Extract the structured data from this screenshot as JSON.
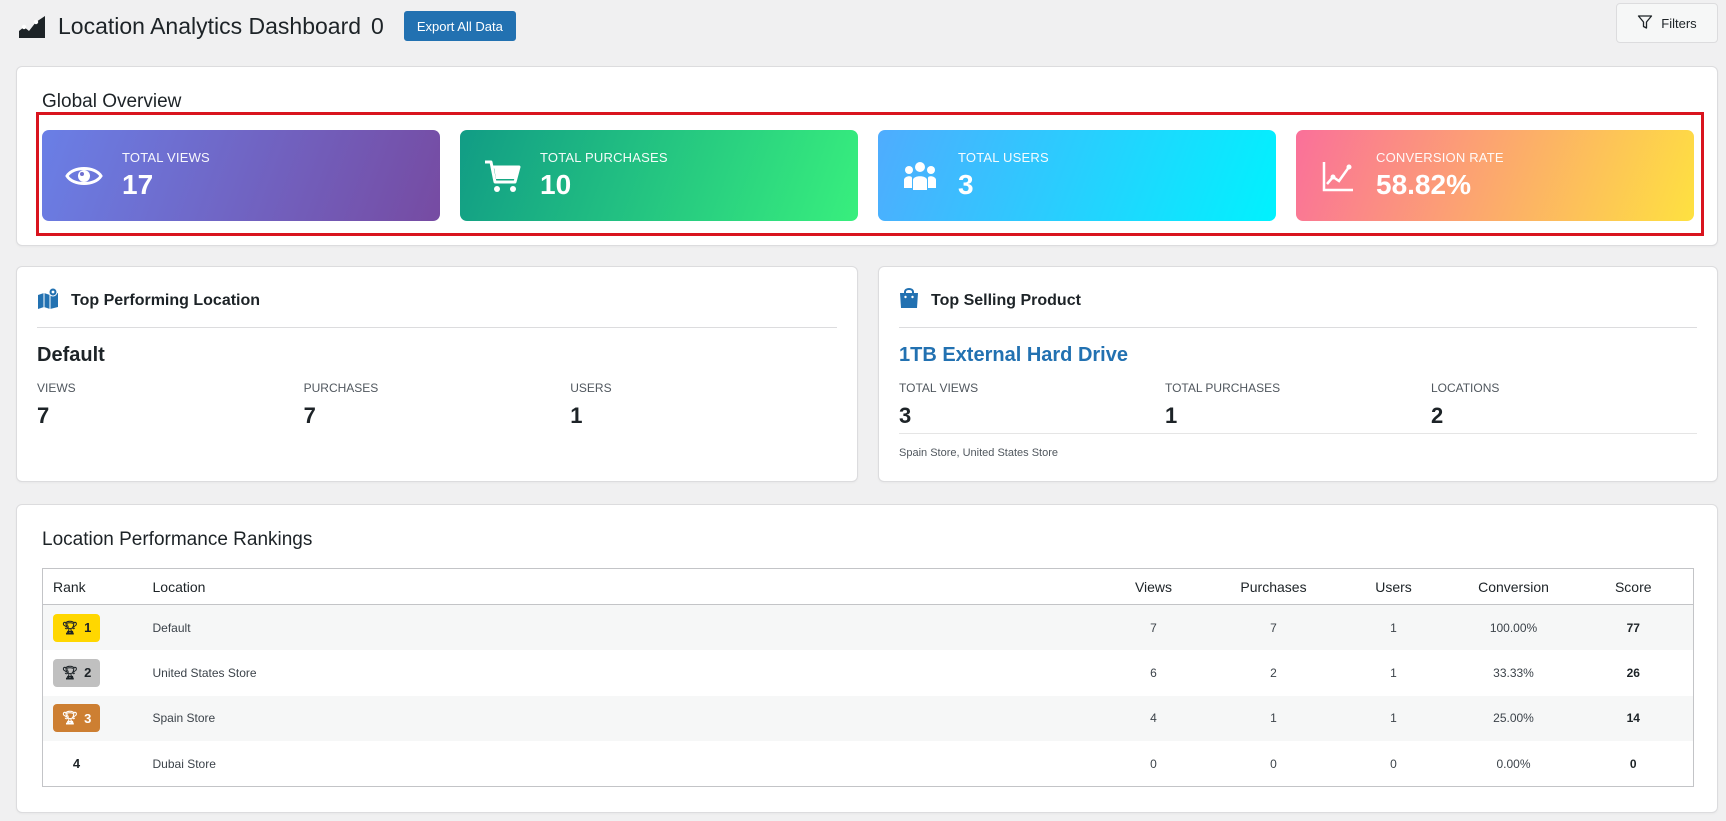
{
  "header": {
    "title": "Location Analytics Dashboard",
    "count": "0",
    "export_label": "Export All Data",
    "filters_label": "Filters"
  },
  "overview": {
    "title": "Global Overview",
    "stats": [
      {
        "label": "TOTAL VIEWS",
        "value": "17",
        "icon": "eye-icon"
      },
      {
        "label": "TOTAL PURCHASES",
        "value": "10",
        "icon": "cart-icon"
      },
      {
        "label": "TOTAL USERS",
        "value": "3",
        "icon": "users-icon"
      },
      {
        "label": "CONVERSION RATE",
        "value": "58.82%",
        "icon": "chart-line-icon"
      }
    ]
  },
  "top_location": {
    "title": "Top Performing Location",
    "name": "Default",
    "metrics": [
      {
        "label": "VIEWS",
        "value": "7"
      },
      {
        "label": "PURCHASES",
        "value": "7"
      },
      {
        "label": "USERS",
        "value": "1"
      }
    ]
  },
  "top_product": {
    "title": "Top Selling Product",
    "name": "1TB External Hard Drive",
    "metrics": [
      {
        "label": "TOTAL VIEWS",
        "value": "3"
      },
      {
        "label": "TOTAL PURCHASES",
        "value": "1"
      },
      {
        "label": "LOCATIONS",
        "value": "2"
      }
    ],
    "locations_list": "Spain Store, United States Store"
  },
  "rankings": {
    "title": "Location Performance Rankings",
    "headers": {
      "rank": "Rank",
      "location": "Location",
      "views": "Views",
      "purchases": "Purchases",
      "users": "Users",
      "conversion": "Conversion",
      "score": "Score"
    },
    "rows": [
      {
        "rank": "1",
        "location": "Default",
        "views": "7",
        "purchases": "7",
        "users": "1",
        "conversion": "100.00%",
        "score": "77"
      },
      {
        "rank": "2",
        "location": "United States Store",
        "views": "6",
        "purchases": "2",
        "users": "1",
        "conversion": "33.33%",
        "score": "26"
      },
      {
        "rank": "3",
        "location": "Spain Store",
        "views": "4",
        "purchases": "1",
        "users": "1",
        "conversion": "25.00%",
        "score": "14"
      },
      {
        "rank": "4",
        "location": "Dubai Store",
        "views": "0",
        "purchases": "0",
        "users": "0",
        "conversion": "0.00%",
        "score": "0"
      }
    ]
  }
}
